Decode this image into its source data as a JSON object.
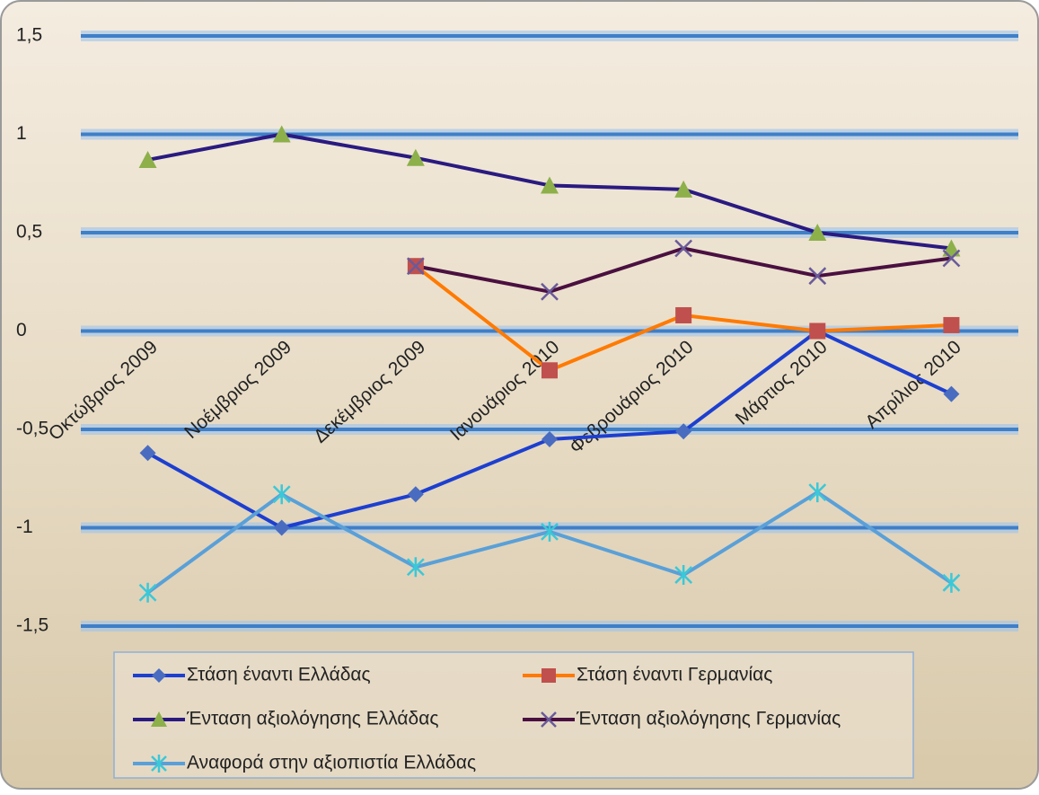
{
  "chart_data": {
    "type": "line",
    "categories": [
      "Οκτώβριος 2009",
      "Νοέμβριος 2009",
      "Δεκέμβριος 2009",
      "Ιανουάριος 2010",
      "Φεβρουάριος 2010",
      "Μάρτιος 2010",
      "Απρίλιος 2010"
    ],
    "series": [
      {
        "name": "Στάση έναντι Ελλάδας",
        "color": "#1d3fd0",
        "marker": "diamond",
        "marker_color": "#4a6cc0",
        "values": [
          -0.62,
          -1.0,
          -0.83,
          -0.55,
          -0.51,
          0,
          -0.32
        ]
      },
      {
        "name": "Στάση έναντι Γερμανίας",
        "color": "#ff7a00",
        "marker": "square",
        "marker_color": "#c0504d",
        "values": [
          null,
          null,
          0.33,
          -0.2,
          0.08,
          0,
          0.03
        ]
      },
      {
        "name": "Ένταση αξιολόγησης Ελλάδας",
        "color": "#2a1a80",
        "marker": "triangle",
        "marker_color": "#8db04a",
        "values": [
          0.87,
          1.0,
          0.88,
          0.74,
          0.72,
          0.5,
          0.42
        ]
      },
      {
        "name": "Ένταση αξιολόγησης Γερμανίας",
        "color": "#4a1040",
        "marker": "x",
        "marker_color": "#6a5a9a",
        "values": [
          null,
          null,
          0.33,
          0.2,
          0.42,
          0.28,
          0.37
        ]
      },
      {
        "name": "Αναφορά στην αξιοπιστία Ελλάδας",
        "color": "#5aa0d8",
        "marker": "star",
        "marker_color": "#3bc8d8",
        "values": [
          -1.33,
          -0.83,
          -1.2,
          -1.02,
          -1.24,
          -0.82,
          -1.28
        ]
      }
    ],
    "ylim": [
      -1.5,
      1.5
    ],
    "yticks": [
      {
        "value": 1.5,
        "label": "1,5"
      },
      1,
      {
        "value": 0.5,
        "label": "0,5"
      },
      0,
      {
        "value": -0.5,
        "label": "-0,5"
      },
      -1,
      {
        "value": -1.5,
        "label": "-1,5"
      }
    ],
    "grid": true
  }
}
